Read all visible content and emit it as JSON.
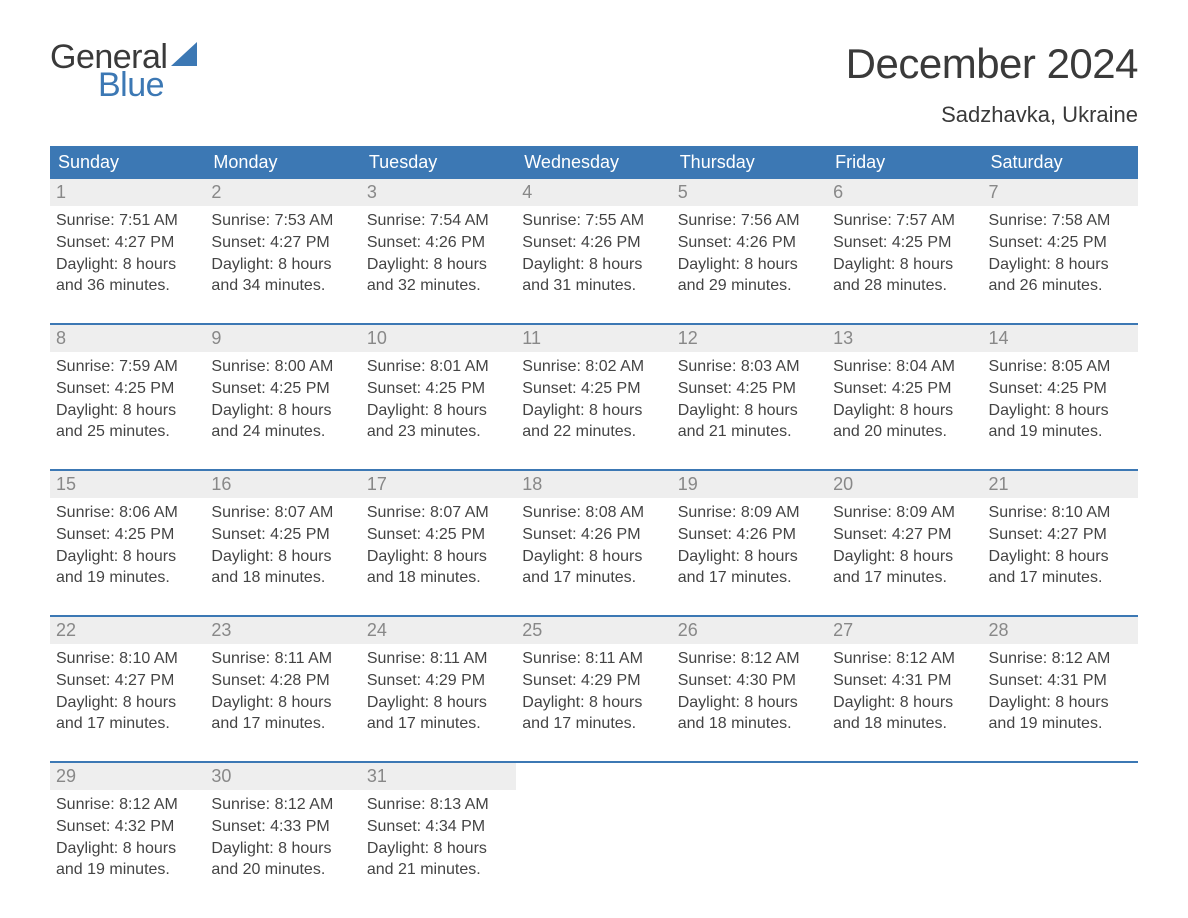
{
  "brand": {
    "word1": "General",
    "word2": "Blue",
    "sail_color": "#3c78b4",
    "text_color": "#3a3a3a"
  },
  "title": "December 2024",
  "location": "Sadzhavka, Ukraine",
  "calendar": {
    "header_bg": "#3c78b4",
    "header_fg": "#ffffff",
    "daynum_bg": "#eeeeee",
    "daynum_fg": "#888888",
    "week_border_color": "#3c78b4",
    "body_text_color": "#444444",
    "days_of_week": [
      "Sunday",
      "Monday",
      "Tuesday",
      "Wednesday",
      "Thursday",
      "Friday",
      "Saturday"
    ],
    "labels": {
      "sunrise": "Sunrise:",
      "sunset": "Sunset:",
      "daylight": "Daylight:"
    },
    "weeks": [
      [
        {
          "n": "1",
          "sunrise": "7:51 AM",
          "sunset": "4:27 PM",
          "daylight_l1": "8 hours",
          "daylight_l2": "and 36 minutes."
        },
        {
          "n": "2",
          "sunrise": "7:53 AM",
          "sunset": "4:27 PM",
          "daylight_l1": "8 hours",
          "daylight_l2": "and 34 minutes."
        },
        {
          "n": "3",
          "sunrise": "7:54 AM",
          "sunset": "4:26 PM",
          "daylight_l1": "8 hours",
          "daylight_l2": "and 32 minutes."
        },
        {
          "n": "4",
          "sunrise": "7:55 AM",
          "sunset": "4:26 PM",
          "daylight_l1": "8 hours",
          "daylight_l2": "and 31 minutes."
        },
        {
          "n": "5",
          "sunrise": "7:56 AM",
          "sunset": "4:26 PM",
          "daylight_l1": "8 hours",
          "daylight_l2": "and 29 minutes."
        },
        {
          "n": "6",
          "sunrise": "7:57 AM",
          "sunset": "4:25 PM",
          "daylight_l1": "8 hours",
          "daylight_l2": "and 28 minutes."
        },
        {
          "n": "7",
          "sunrise": "7:58 AM",
          "sunset": "4:25 PM",
          "daylight_l1": "8 hours",
          "daylight_l2": "and 26 minutes."
        }
      ],
      [
        {
          "n": "8",
          "sunrise": "7:59 AM",
          "sunset": "4:25 PM",
          "daylight_l1": "8 hours",
          "daylight_l2": "and 25 minutes."
        },
        {
          "n": "9",
          "sunrise": "8:00 AM",
          "sunset": "4:25 PM",
          "daylight_l1": "8 hours",
          "daylight_l2": "and 24 minutes."
        },
        {
          "n": "10",
          "sunrise": "8:01 AM",
          "sunset": "4:25 PM",
          "daylight_l1": "8 hours",
          "daylight_l2": "and 23 minutes."
        },
        {
          "n": "11",
          "sunrise": "8:02 AM",
          "sunset": "4:25 PM",
          "daylight_l1": "8 hours",
          "daylight_l2": "and 22 minutes."
        },
        {
          "n": "12",
          "sunrise": "8:03 AM",
          "sunset": "4:25 PM",
          "daylight_l1": "8 hours",
          "daylight_l2": "and 21 minutes."
        },
        {
          "n": "13",
          "sunrise": "8:04 AM",
          "sunset": "4:25 PM",
          "daylight_l1": "8 hours",
          "daylight_l2": "and 20 minutes."
        },
        {
          "n": "14",
          "sunrise": "8:05 AM",
          "sunset": "4:25 PM",
          "daylight_l1": "8 hours",
          "daylight_l2": "and 19 minutes."
        }
      ],
      [
        {
          "n": "15",
          "sunrise": "8:06 AM",
          "sunset": "4:25 PM",
          "daylight_l1": "8 hours",
          "daylight_l2": "and 19 minutes."
        },
        {
          "n": "16",
          "sunrise": "8:07 AM",
          "sunset": "4:25 PM",
          "daylight_l1": "8 hours",
          "daylight_l2": "and 18 minutes."
        },
        {
          "n": "17",
          "sunrise": "8:07 AM",
          "sunset": "4:25 PM",
          "daylight_l1": "8 hours",
          "daylight_l2": "and 18 minutes."
        },
        {
          "n": "18",
          "sunrise": "8:08 AM",
          "sunset": "4:26 PM",
          "daylight_l1": "8 hours",
          "daylight_l2": "and 17 minutes."
        },
        {
          "n": "19",
          "sunrise": "8:09 AM",
          "sunset": "4:26 PM",
          "daylight_l1": "8 hours",
          "daylight_l2": "and 17 minutes."
        },
        {
          "n": "20",
          "sunrise": "8:09 AM",
          "sunset": "4:27 PM",
          "daylight_l1": "8 hours",
          "daylight_l2": "and 17 minutes."
        },
        {
          "n": "21",
          "sunrise": "8:10 AM",
          "sunset": "4:27 PM",
          "daylight_l1": "8 hours",
          "daylight_l2": "and 17 minutes."
        }
      ],
      [
        {
          "n": "22",
          "sunrise": "8:10 AM",
          "sunset": "4:27 PM",
          "daylight_l1": "8 hours",
          "daylight_l2": "and 17 minutes."
        },
        {
          "n": "23",
          "sunrise": "8:11 AM",
          "sunset": "4:28 PM",
          "daylight_l1": "8 hours",
          "daylight_l2": "and 17 minutes."
        },
        {
          "n": "24",
          "sunrise": "8:11 AM",
          "sunset": "4:29 PM",
          "daylight_l1": "8 hours",
          "daylight_l2": "and 17 minutes."
        },
        {
          "n": "25",
          "sunrise": "8:11 AM",
          "sunset": "4:29 PM",
          "daylight_l1": "8 hours",
          "daylight_l2": "and 17 minutes."
        },
        {
          "n": "26",
          "sunrise": "8:12 AM",
          "sunset": "4:30 PM",
          "daylight_l1": "8 hours",
          "daylight_l2": "and 18 minutes."
        },
        {
          "n": "27",
          "sunrise": "8:12 AM",
          "sunset": "4:31 PM",
          "daylight_l1": "8 hours",
          "daylight_l2": "and 18 minutes."
        },
        {
          "n": "28",
          "sunrise": "8:12 AM",
          "sunset": "4:31 PM",
          "daylight_l1": "8 hours",
          "daylight_l2": "and 19 minutes."
        }
      ],
      [
        {
          "n": "29",
          "sunrise": "8:12 AM",
          "sunset": "4:32 PM",
          "daylight_l1": "8 hours",
          "daylight_l2": "and 19 minutes."
        },
        {
          "n": "30",
          "sunrise": "8:12 AM",
          "sunset": "4:33 PM",
          "daylight_l1": "8 hours",
          "daylight_l2": "and 20 minutes."
        },
        {
          "n": "31",
          "sunrise": "8:13 AM",
          "sunset": "4:34 PM",
          "daylight_l1": "8 hours",
          "daylight_l2": "and 21 minutes."
        },
        {
          "empty": true
        },
        {
          "empty": true
        },
        {
          "empty": true
        },
        {
          "empty": true
        }
      ]
    ]
  }
}
